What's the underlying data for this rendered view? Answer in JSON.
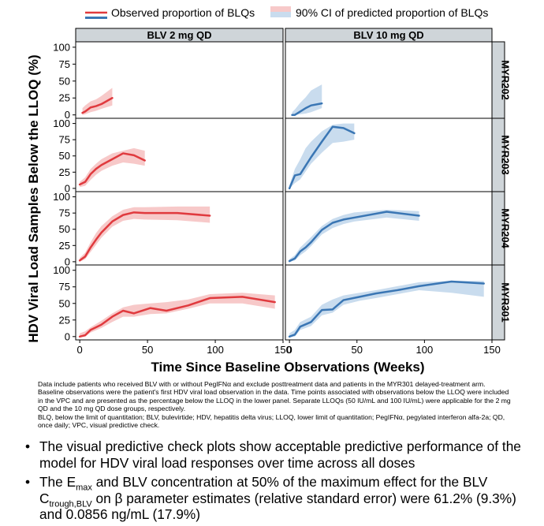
{
  "chart_data": {
    "type": "line",
    "legend": {
      "position": "top",
      "observed_label": "Observed proportion of BLQs",
      "ci_label": "90% CI of predicted proportion of BLQs"
    },
    "colors": {
      "dose2_line": "#e03a3e",
      "dose2_band": "#f7c9c9",
      "dose10_line": "#3a76b4",
      "dose10_band": "#c9dcee",
      "strip_bg": "#cfd5d9"
    },
    "ylabel": "HDV Viral Load Samples Below the LLOQ (%)",
    "xlabel": "Time Since Baseline Observations (Weeks)",
    "xlim": [
      -3,
      150
    ],
    "ylim": [
      -5,
      108
    ],
    "x_ticks": [
      0,
      50,
      100,
      150
    ],
    "y_ticks": [
      0,
      25,
      50,
      75,
      100
    ],
    "columns": [
      "BLV 2 mg QD",
      "BLV 10 mg QD"
    ],
    "rows": [
      "MYR202",
      "MYR203",
      "MYR204",
      "MYR301"
    ],
    "panels": [
      {
        "row": "MYR202",
        "column": "BLV 2 mg QD",
        "observed": {
          "x": [
            2,
            4,
            8,
            12,
            16,
            24
          ],
          "y": [
            3,
            5,
            11,
            13,
            16,
            25
          ]
        },
        "ci": {
          "x": [
            2,
            4,
            8,
            12,
            16,
            24
          ],
          "lower": [
            0,
            1,
            4,
            6,
            9,
            14
          ],
          "upper": [
            10,
            14,
            20,
            23,
            28,
            40
          ]
        }
      },
      {
        "row": "MYR202",
        "column": "BLV 10 mg QD",
        "observed": {
          "x": [
            2,
            4,
            8,
            12,
            16,
            24
          ],
          "y": [
            0,
            0,
            5,
            10,
            14,
            17
          ]
        },
        "ci": {
          "x": [
            2,
            4,
            8,
            12,
            16,
            24
          ],
          "lower": [
            0,
            0,
            1,
            2,
            4,
            10
          ],
          "upper": [
            4,
            8,
            18,
            26,
            36,
            45
          ]
        }
      },
      {
        "row": "MYR203",
        "column": "BLV 2 mg QD",
        "observed": {
          "x": [
            0,
            4,
            8,
            12,
            16,
            24,
            32,
            40,
            48
          ],
          "y": [
            6,
            10,
            22,
            30,
            36,
            45,
            54,
            51,
            43
          ]
        },
        "ci": {
          "x": [
            0,
            4,
            8,
            12,
            16,
            24,
            32,
            40,
            48
          ],
          "lower": [
            2,
            4,
            13,
            21,
            27,
            35,
            40,
            38,
            35
          ],
          "upper": [
            10,
            17,
            30,
            38,
            45,
            54,
            58,
            62,
            58
          ]
        }
      },
      {
        "row": "MYR203",
        "column": "BLV 10 mg QD",
        "observed": {
          "x": [
            0,
            4,
            8,
            12,
            16,
            24,
            32,
            40,
            48
          ],
          "y": [
            0,
            20,
            22,
            35,
            48,
            72,
            95,
            93,
            85
          ]
        },
        "ci": {
          "x": [
            0,
            4,
            8,
            12,
            16,
            24,
            32,
            40,
            48
          ],
          "lower": [
            0,
            8,
            14,
            26,
            38,
            55,
            70,
            72,
            75
          ],
          "upper": [
            5,
            30,
            45,
            62,
            72,
            88,
            98,
            100,
            100
          ]
        }
      },
      {
        "row": "MYR204",
        "column": "BLV 2 mg QD",
        "observed": {
          "x": [
            0,
            4,
            8,
            12,
            16,
            24,
            32,
            40,
            48,
            72,
            96
          ],
          "y": [
            2,
            8,
            22,
            34,
            45,
            62,
            72,
            76,
            75,
            75,
            71
          ]
        },
        "ci": {
          "x": [
            0,
            4,
            8,
            12,
            16,
            24,
            32,
            40,
            48,
            72,
            96
          ],
          "lower": [
            0,
            4,
            15,
            26,
            37,
            54,
            63,
            66,
            65,
            64,
            60
          ],
          "upper": [
            6,
            14,
            30,
            44,
            55,
            70,
            80,
            84,
            84,
            85,
            85
          ]
        }
      },
      {
        "row": "MYR204",
        "column": "BLV 10 mg QD",
        "observed": {
          "x": [
            0,
            4,
            8,
            12,
            16,
            24,
            32,
            40,
            48,
            72,
            96
          ],
          "y": [
            1,
            5,
            16,
            22,
            30,
            49,
            60,
            65,
            68,
            77,
            71
          ]
        },
        "ci": {
          "x": [
            0,
            4,
            8,
            12,
            16,
            24,
            32,
            40,
            48,
            72,
            96
          ],
          "lower": [
            0,
            2,
            10,
            16,
            24,
            42,
            52,
            58,
            62,
            68,
            63
          ],
          "upper": [
            4,
            10,
            22,
            30,
            38,
            55,
            66,
            72,
            76,
            80,
            78
          ]
        }
      },
      {
        "row": "MYR301",
        "column": "BLV 2 mg QD",
        "observed": {
          "x": [
            0,
            4,
            8,
            16,
            24,
            32,
            40,
            52,
            64,
            80,
            96,
            120,
            144
          ],
          "y": [
            0,
            2,
            10,
            18,
            30,
            39,
            35,
            43,
            39,
            47,
            58,
            60,
            52
          ]
        },
        "ci": {
          "x": [
            0,
            4,
            8,
            16,
            24,
            32,
            40,
            52,
            64,
            80,
            96,
            120,
            144
          ],
          "lower": [
            0,
            0,
            6,
            13,
            22,
            30,
            30,
            34,
            35,
            42,
            50,
            50,
            42
          ],
          "upper": [
            5,
            8,
            14,
            24,
            35,
            44,
            48,
            50,
            52,
            56,
            64,
            66,
            62
          ]
        }
      },
      {
        "row": "MYR301",
        "column": "BLV 10 mg QD",
        "observed": {
          "x": [
            0,
            4,
            8,
            16,
            24,
            32,
            40,
            52,
            64,
            80,
            96,
            120,
            144
          ],
          "y": [
            0,
            3,
            15,
            22,
            40,
            41,
            55,
            60,
            65,
            70,
            76,
            83,
            80
          ]
        },
        "ci": {
          "x": [
            0,
            4,
            8,
            16,
            24,
            32,
            40,
            52,
            64,
            80,
            96,
            120,
            144
          ],
          "lower": [
            0,
            0,
            10,
            16,
            32,
            36,
            48,
            54,
            58,
            64,
            70,
            66,
            60
          ],
          "upper": [
            5,
            10,
            22,
            30,
            48,
            56,
            62,
            66,
            70,
            76,
            82,
            84,
            84
          ]
        }
      }
    ]
  },
  "footnote": {
    "line1": "Data include patients who received BLV with or without PegIFNα and exclude posttreatment data and patients in the MYR301 delayed-treatment arm. Baseline observations were the patient's first HDV viral load observation in the data. Time points associated with observations below the LLOQ were included in the VPC and are presented as the percentage below the LLOQ in the lower panel. Separate LLOQs (50 IU/mL and 100 IU/mL) were applicable for the 2 mg QD and the 10 mg QD dose groups, respectively.",
    "line2": "BLQ, below the limit of quantitation; BLV, bulevirtide; HDV, hepatitis delta virus; LLOQ, lower limit of quantitation; PegIFNα, pegylated interferon alfa-2a; QD, once daily; VPC, visual predictive check."
  },
  "bullets": {
    "b1": "The visual predictive check plots show acceptable predictive performance of the model for HDV viral load responses over time across all doses",
    "b2_pre": "The E",
    "b2_sub1": "max",
    "b2_mid": " and BLV concentration at 50% of the maximum effect for the BLV C",
    "b2_sub2": "trough,BLV",
    "b2_post": " on β parameter estimates (relative standard error) were 61.2% (9.3%) and 0.0856 ng/mL (17.9%)"
  }
}
